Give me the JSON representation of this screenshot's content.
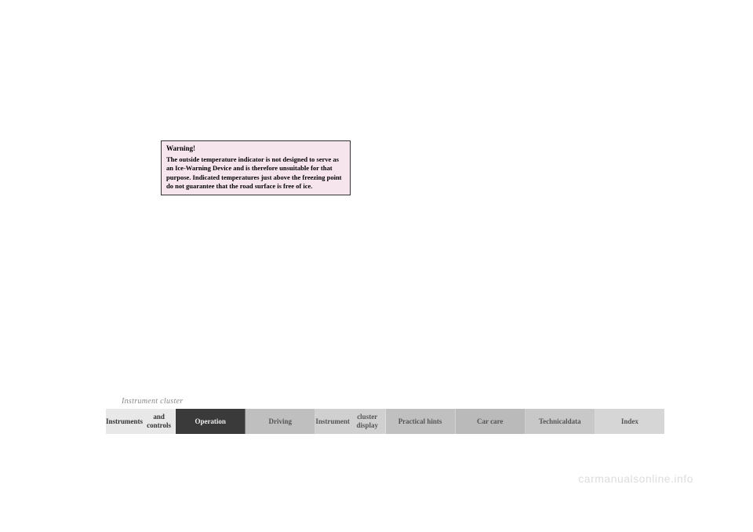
{
  "warning": {
    "title": "Warning!",
    "text": "The outside temperature indicator is not designed to serve as an Ice-Warning Device and is therefore unsuitable for that purpose. Indicated temperatures just above the freezing point do not guarantee that the road surface is free of ice."
  },
  "section_label": "Instrument cluster",
  "tabs": [
    {
      "label": "Instruments\nand controls",
      "bg": "#e8e8e8",
      "color": "#333333",
      "weight": "bold"
    },
    {
      "label": "Operation",
      "bg": "#3a3a3a",
      "color": "#eeeeee",
      "weight": "bold"
    },
    {
      "label": "Driving",
      "bg": "#bfbfbf",
      "color": "#555555",
      "weight": "bold"
    },
    {
      "label": "Instrument\ncluster display",
      "bg": "#d0d0d0",
      "color": "#555555",
      "weight": "bold"
    },
    {
      "label": "Practical hints",
      "bg": "#c0c0c0",
      "color": "#555555",
      "weight": "bold"
    },
    {
      "label": "Car care",
      "bg": "#bababa",
      "color": "#555555",
      "weight": "bold"
    },
    {
      "label": "Technical\ndata",
      "bg": "#c8c8c8",
      "color": "#555555",
      "weight": "bold"
    },
    {
      "label": "Index",
      "bg": "#d6d6d6",
      "color": "#555555",
      "weight": "bold"
    }
  ],
  "watermark": "carmanualsonline.info"
}
